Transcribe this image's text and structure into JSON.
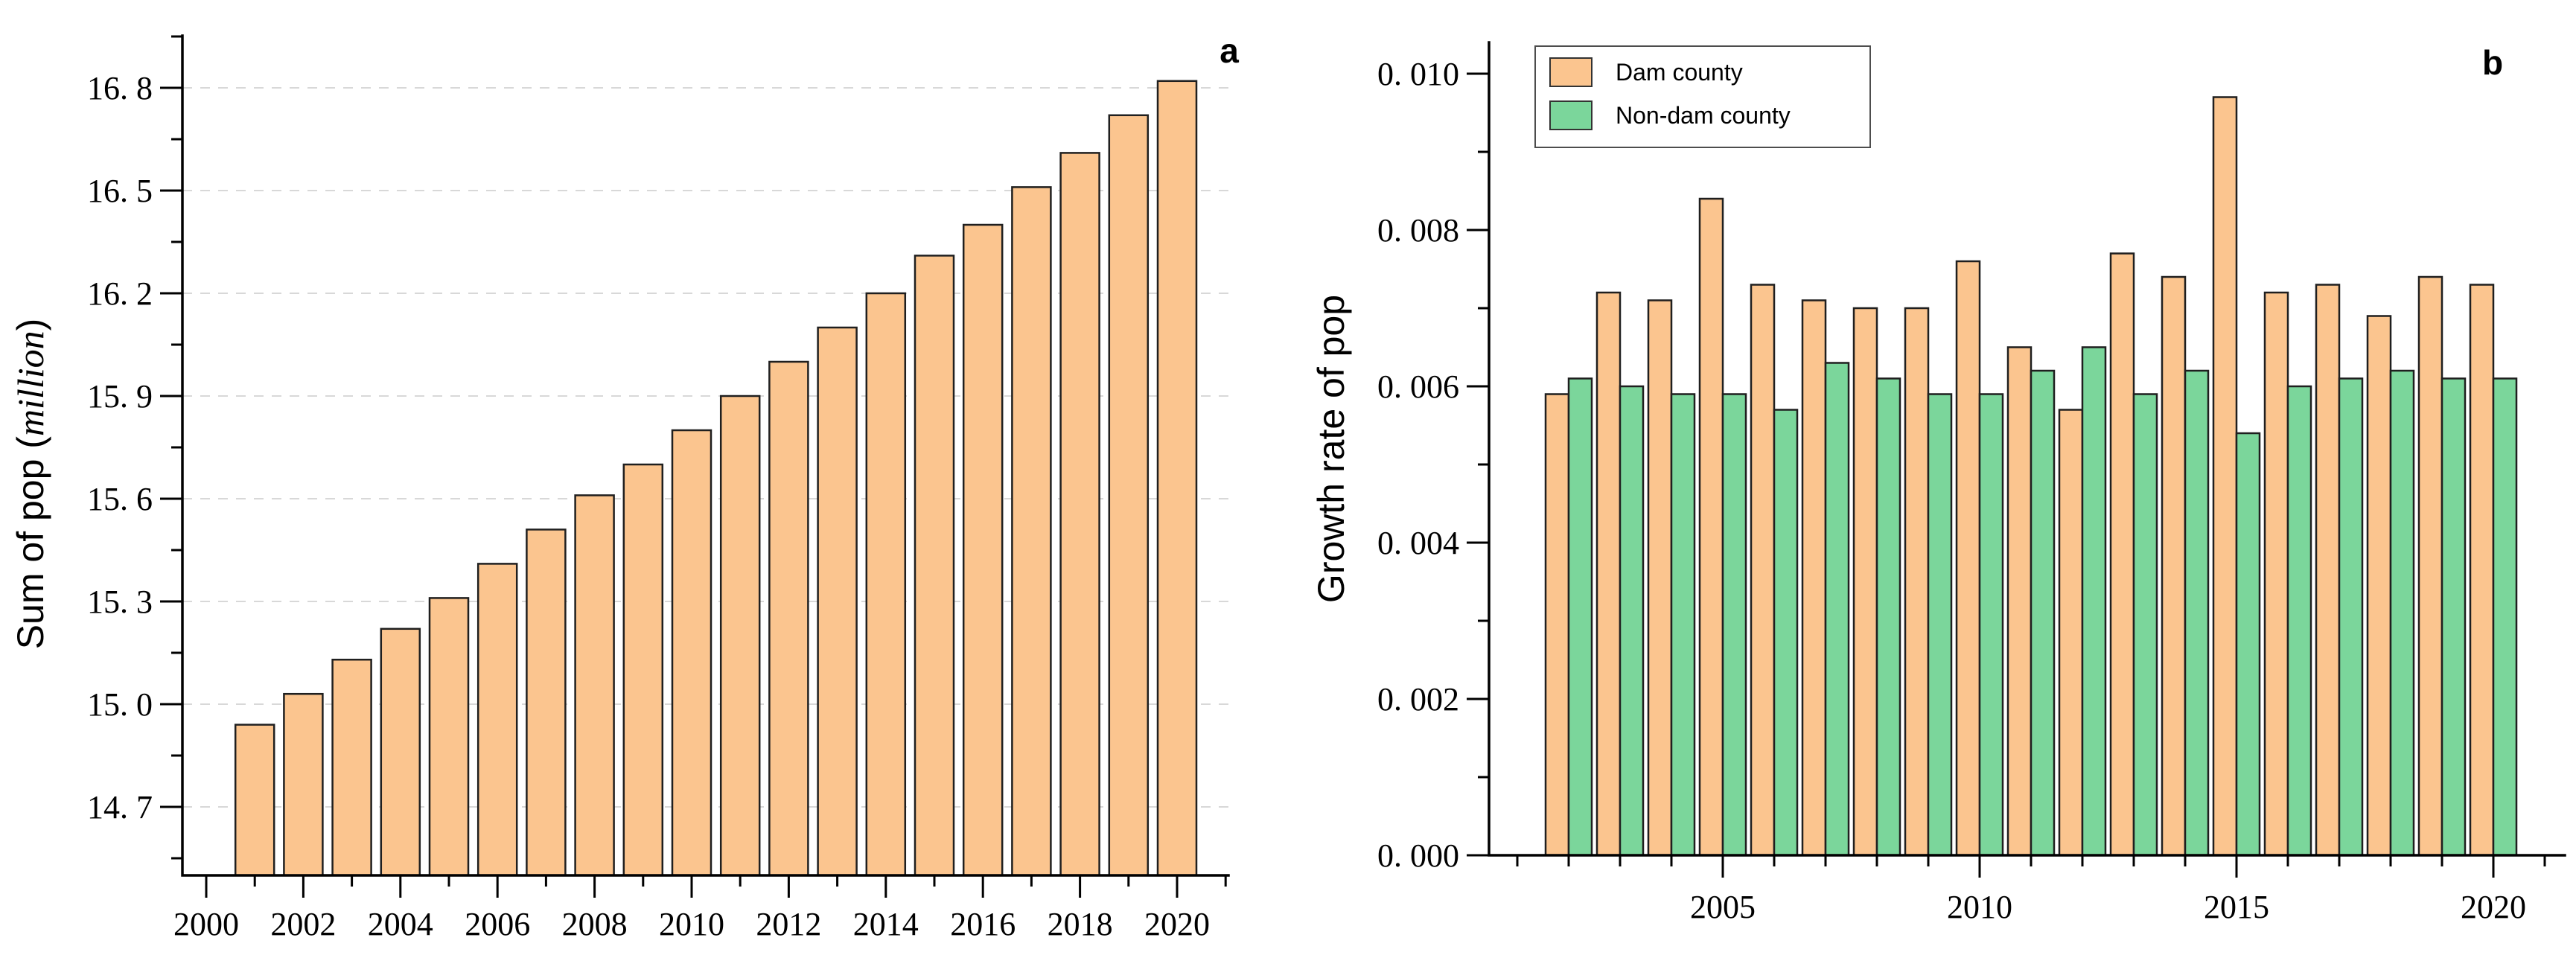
{
  "page": {
    "background": "#ffffff"
  },
  "chart_data": [
    {
      "id": "panel-a",
      "panel_label": "a",
      "type": "bar",
      "title": "",
      "xlabel": "",
      "ylabel": "Sum of pop (million)",
      "ylabel_parts": {
        "prefix": "Sum of pop (",
        "italic": "million",
        "suffix": ")"
      },
      "categories": [
        2001,
        2002,
        2003,
        2004,
        2005,
        2006,
        2007,
        2008,
        2009,
        2010,
        2011,
        2012,
        2013,
        2014,
        2015,
        2016,
        2017,
        2018,
        2019,
        2020
      ],
      "values": [
        14.94,
        15.03,
        15.13,
        15.22,
        15.31,
        15.41,
        15.51,
        15.61,
        15.7,
        15.8,
        15.9,
        16.0,
        16.1,
        16.2,
        16.31,
        16.4,
        16.51,
        16.61,
        16.72,
        16.82
      ],
      "bar_color": "#FBC58F",
      "bar_edge_color": "#1f1f1f",
      "ylim": [
        14.5,
        16.95
      ],
      "yticks": {
        "values": [
          14.7,
          15.0,
          15.3,
          15.6,
          15.9,
          16.2,
          16.5,
          16.8
        ],
        "labels": [
          "14. 7",
          "15. 0",
          "15. 3",
          "15. 6",
          "15. 9",
          "16. 2",
          "16. 5",
          "16. 8"
        ]
      },
      "yminor": [
        14.55,
        14.85,
        15.15,
        15.45,
        15.75,
        16.05,
        16.35,
        16.65,
        16.95
      ],
      "xticks": {
        "values": [
          2000,
          2002,
          2004,
          2006,
          2008,
          2010,
          2012,
          2014,
          2016,
          2018,
          2020
        ],
        "labels": [
          "2000",
          "2002",
          "2004",
          "2006",
          "2008",
          "2010",
          "2012",
          "2014",
          "2016",
          "2018",
          "2020"
        ]
      },
      "xminor": [
        2001,
        2003,
        2005,
        2007,
        2009,
        2011,
        2013,
        2015,
        2017,
        2019,
        2021
      ],
      "grid": "dashed",
      "gridline_color": "#d8d8d8",
      "legend_position": "none"
    },
    {
      "id": "panel-b",
      "panel_label": "b",
      "type": "grouped-bar",
      "title": "",
      "xlabel": "",
      "ylabel": "Growth rate of pop",
      "categories": [
        2002,
        2003,
        2004,
        2005,
        2006,
        2007,
        2008,
        2009,
        2010,
        2011,
        2012,
        2013,
        2014,
        2015,
        2016,
        2017,
        2018,
        2019,
        2020
      ],
      "series": [
        {
          "name": "Dam county",
          "color": "#FBC58F",
          "values": [
            0.0059,
            0.0072,
            0.0071,
            0.0084,
            0.0073,
            0.0071,
            0.007,
            0.007,
            0.0076,
            0.0065,
            0.0057,
            0.0077,
            0.0074,
            0.0097,
            0.0072,
            0.0073,
            0.0069,
            0.0074,
            0.0073
          ]
        },
        {
          "name": "Non-dam county",
          "color": "#7BD69B",
          "values": [
            0.0061,
            0.006,
            0.0059,
            0.0059,
            0.0057,
            0.0063,
            0.0061,
            0.0059,
            0.0059,
            0.0062,
            0.0065,
            0.0059,
            0.0062,
            0.0054,
            0.006,
            0.0061,
            0.0062,
            0.0061,
            0.0061
          ]
        }
      ],
      "bar_edge_color": "#1f1f1f",
      "ylim": [
        0,
        0.0104
      ],
      "yticks": {
        "values": [
          0.0,
          0.002,
          0.004,
          0.006,
          0.008,
          0.01
        ],
        "labels": [
          "0. 000",
          "0. 002",
          "0. 004",
          "0. 006",
          "0. 008",
          "0. 010"
        ]
      },
      "yminor": [
        0.001,
        0.003,
        0.005,
        0.007,
        0.009
      ],
      "xticks": {
        "values": [
          2005,
          2010,
          2015,
          2020
        ],
        "labels": [
          "2005",
          "2010",
          "2015",
          "2020"
        ]
      },
      "xminor": [
        2001,
        2002,
        2003,
        2004,
        2006,
        2007,
        2008,
        2009,
        2011,
        2012,
        2013,
        2014,
        2016,
        2017,
        2018,
        2019,
        2021
      ],
      "grid": "none",
      "legend_position": "top-left",
      "legend_border_color": "#4d4d4d"
    }
  ]
}
